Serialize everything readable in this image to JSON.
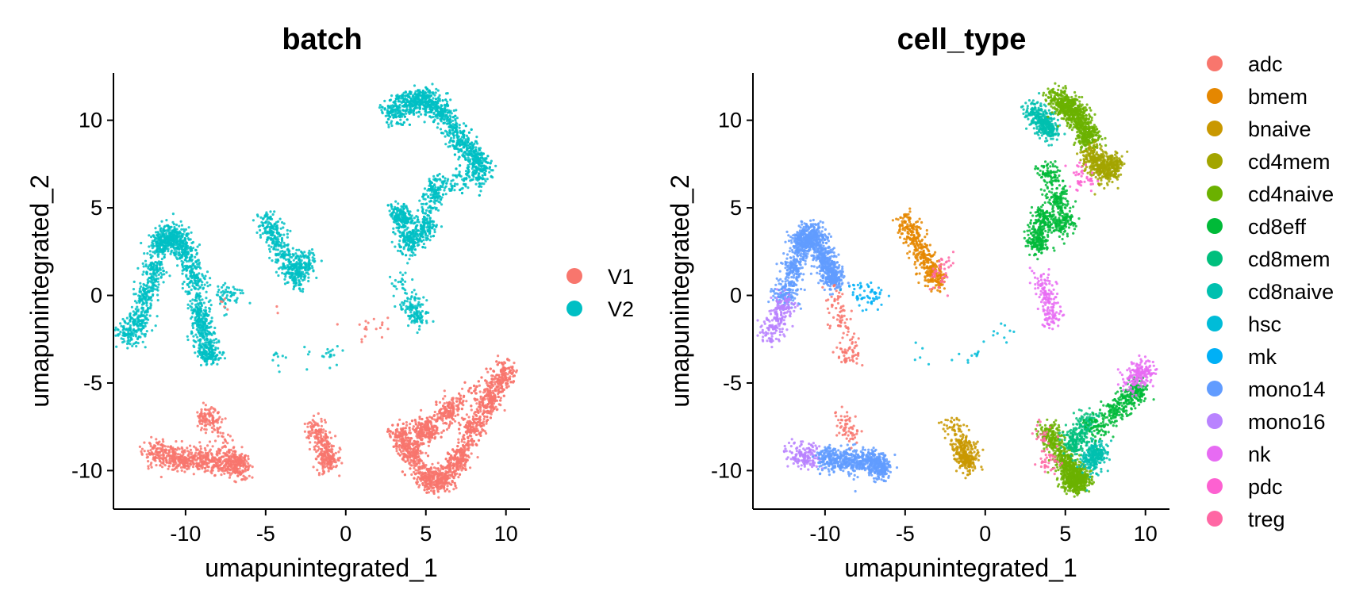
{
  "chart_data": [
    {
      "type": "scatter",
      "title": "batch",
      "xlabel": "umapunintegrated_1",
      "ylabel": "umapunintegrated_2",
      "xlim": [
        -14.5,
        11.5
      ],
      "ylim": [
        -12.2,
        12.7
      ],
      "xticks": [
        -10,
        -5,
        0,
        5,
        10
      ],
      "yticks": [
        -10,
        -5,
        0,
        5,
        10
      ],
      "grid": false,
      "legend_position": "right",
      "legend": [
        {
          "label": "V1",
          "color": "#F8766D"
        },
        {
          "label": "V2",
          "color": "#00BFC4"
        }
      ],
      "clusters": [
        {
          "name": "V2",
          "color": "#00BFC4",
          "x": [
            -13.5,
            -13.0,
            -12.5,
            -12.0,
            -11.5,
            -11.0,
            -10.5,
            -10.0,
            -9.5,
            -9.0,
            -9.0,
            -8.5
          ],
          "y": [
            -2.2,
            -1.5,
            0.0,
            1.5,
            3.0,
            3.5,
            3.2,
            2.5,
            1.0,
            -1.0,
            -2.0,
            -3.3
          ],
          "n": 1500
        },
        {
          "name": "V2",
          "color": "#00BFC4",
          "x": [
            -5.0,
            -4.5,
            -4.0,
            -3.5,
            -3.0,
            -2.5
          ],
          "y": [
            4.2,
            3.5,
            2.5,
            1.5,
            1.0,
            2.0
          ],
          "n": 500
        },
        {
          "name": "V2",
          "color": "#00BFC4",
          "x": [
            3.0,
            4.0,
            5.0,
            6.0,
            7.0,
            8.0,
            8.5,
            5.5,
            5.0,
            4.0,
            3.5
          ],
          "y": [
            10.5,
            11.0,
            11.2,
            10.5,
            9.0,
            8.0,
            7.0,
            6.0,
            4.0,
            3.0,
            4.5
          ],
          "n": 2000
        },
        {
          "name": "V2",
          "color": "#00BFC4",
          "x": [
            3.5,
            4.0,
            4.5
          ],
          "y": [
            0.8,
            -0.5,
            -1.2
          ],
          "n": 150
        },
        {
          "name": "V2",
          "color": "#00BFC4",
          "x": [
            -8.0,
            -7.5,
            -7.0
          ],
          "y": [
            0.2,
            -0.1,
            0.0
          ],
          "n": 60
        },
        {
          "name": "V2",
          "color": "#00BFC4",
          "x": [
            -4.2,
            -0.8
          ],
          "y": [
            -3.6,
            -3.5
          ],
          "n": 30
        },
        {
          "name": "V1",
          "color": "#F8766D",
          "x": [
            -12.0,
            -11.0,
            -10.0,
            -9.0,
            -8.0,
            -7.0,
            -6.5,
            -8.5
          ],
          "y": [
            -9.0,
            -9.2,
            -9.3,
            -9.4,
            -9.5,
            -9.5,
            -9.8,
            -7.0
          ],
          "n": 900
        },
        {
          "name": "V1",
          "color": "#F8766D",
          "x": [
            -2.0,
            -1.5,
            -1.0,
            -1.2
          ],
          "y": [
            -7.5,
            -8.5,
            -9.2,
            -9.5
          ],
          "n": 300
        },
        {
          "name": "V1",
          "color": "#F8766D",
          "x": [
            3.5,
            4.0,
            5.0,
            6.0,
            7.0,
            8.0,
            9.0,
            10.0,
            6.5,
            5.0
          ],
          "y": [
            -8.0,
            -9.0,
            -10.5,
            -10.5,
            -9.5,
            -7.5,
            -6.0,
            -4.3,
            -6.5,
            -7.8
          ],
          "n": 2200
        },
        {
          "name": "V1",
          "color": "#F8766D",
          "x": [
            -7.8,
            2.6,
            1.2
          ],
          "y": [
            -0.1,
            -1.8,
            -2.0
          ],
          "n": 25
        }
      ]
    },
    {
      "type": "scatter",
      "title": "cell_type",
      "xlabel": "umapunintegrated_1",
      "ylabel": "umapunintegrated_2",
      "xlim": [
        -14.5,
        11.5
      ],
      "ylim": [
        -12.2,
        12.7
      ],
      "xticks": [
        -10,
        -5,
        0,
        5,
        10
      ],
      "yticks": [
        -10,
        -5,
        0,
        5,
        10
      ],
      "grid": false,
      "legend_position": "right",
      "legend": [
        {
          "label": "adc",
          "color": "#F8766D"
        },
        {
          "label": "bmem",
          "color": "#E58700"
        },
        {
          "label": "bnaive",
          "color": "#C99800"
        },
        {
          "label": "cd4mem",
          "color": "#A3A500"
        },
        {
          "label": "cd4naive",
          "color": "#6BB100"
        },
        {
          "label": "cd8eff",
          "color": "#00BA38"
        },
        {
          "label": "cd8mem",
          "color": "#00BF7D"
        },
        {
          "label": "cd8naive",
          "color": "#00C0AF"
        },
        {
          "label": "hsc",
          "color": "#00BCD8"
        },
        {
          "label": "mk",
          "color": "#00B0F6"
        },
        {
          "label": "mono14",
          "color": "#619CFF"
        },
        {
          "label": "mono16",
          "color": "#B983FF"
        },
        {
          "label": "nk",
          "color": "#E76BF3"
        },
        {
          "label": "pdc",
          "color": "#FD61D1"
        },
        {
          "label": "treg",
          "color": "#FF67A4"
        }
      ],
      "clusters": [
        {
          "name": "mono14",
          "color": "#619CFF",
          "x": [
            -12.5,
            -12.0,
            -11.5,
            -11.0,
            -10.5,
            -10.0,
            -9.5
          ],
          "y": [
            0.0,
            1.5,
            3.0,
            3.5,
            3.2,
            2.0,
            1.0
          ],
          "n": 1200
        },
        {
          "name": "mono16",
          "color": "#B983FF",
          "x": [
            -13.5,
            -13.0,
            -12.5
          ],
          "y": [
            -2.2,
            -1.5,
            -0.5
          ],
          "n": 200
        },
        {
          "name": "adc",
          "color": "#F8766D",
          "x": [
            -9.5,
            -9.0,
            -8.5
          ],
          "y": [
            0.0,
            -1.5,
            -3.3
          ],
          "n": 120
        },
        {
          "name": "mk",
          "color": "#00B0F6",
          "x": [
            -8.0,
            -7.5,
            -7.0
          ],
          "y": [
            0.2,
            -0.1,
            0.0
          ],
          "n": 60
        },
        {
          "name": "bmem",
          "color": "#E58700",
          "x": [
            -5.0,
            -4.5,
            -4.0,
            -3.5,
            -3.0
          ],
          "y": [
            4.2,
            3.5,
            2.5,
            1.5,
            1.0
          ],
          "n": 400
        },
        {
          "name": "treg",
          "color": "#FF67A4",
          "x": [
            -2.5,
            -3.0
          ],
          "y": [
            1.8,
            1.0
          ],
          "n": 40
        },
        {
          "name": "cd8naive",
          "color": "#00C0AF",
          "x": [
            3.0,
            3.5,
            4.0
          ],
          "y": [
            10.5,
            10.0,
            9.5
          ],
          "n": 350
        },
        {
          "name": "cd4naive",
          "color": "#6BB100",
          "x": [
            4.5,
            5.0,
            5.5,
            6.0,
            6.5
          ],
          "y": [
            11.2,
            10.8,
            10.5,
            10.0,
            9.0
          ],
          "n": 800
        },
        {
          "name": "cd4mem",
          "color": "#A3A500",
          "x": [
            6.5,
            7.0,
            7.5,
            8.0
          ],
          "y": [
            8.0,
            7.5,
            7.0,
            7.5
          ],
          "n": 500
        },
        {
          "name": "cd8eff",
          "color": "#00BA38",
          "x": [
            4.0,
            4.5,
            5.0,
            3.5,
            3.3
          ],
          "y": [
            7.0,
            5.5,
            4.0,
            4.5,
            3.0
          ],
          "n": 600
        },
        {
          "name": "pdc",
          "color": "#FD61D1",
          "x": [
            5.8,
            6.2
          ],
          "y": [
            7.0,
            6.5
          ],
          "n": 40
        },
        {
          "name": "nk",
          "color": "#E76BF3",
          "x": [
            3.5,
            3.8,
            4.0,
            4.2
          ],
          "y": [
            0.8,
            0.0,
            -0.5,
            -1.2
          ],
          "n": 160
        },
        {
          "name": "hsc",
          "color": "#00BCD8",
          "x": [
            -4.2,
            -0.8,
            1.0
          ],
          "y": [
            -3.6,
            -3.5,
            -2.0
          ],
          "n": 25
        },
        {
          "name": "mono16",
          "color": "#B983FF",
          "x": [
            -12.0,
            -11.0
          ],
          "y": [
            -9.0,
            -9.2
          ],
          "n": 150
        },
        {
          "name": "mono14",
          "color": "#619CFF",
          "x": [
            -10.0,
            -9.0,
            -8.0,
            -7.0,
            -6.5
          ],
          "y": [
            -9.3,
            -9.4,
            -9.5,
            -9.5,
            -9.8
          ],
          "n": 700
        },
        {
          "name": "adc",
          "color": "#F8766D",
          "x": [
            -8.7,
            -8.5
          ],
          "y": [
            -7.0,
            -7.8
          ],
          "n": 60
        },
        {
          "name": "bnaive",
          "color": "#C99800",
          "x": [
            -2.0,
            -1.5,
            -1.0,
            -1.2
          ],
          "y": [
            -7.5,
            -8.5,
            -9.2,
            -9.5
          ],
          "n": 300
        },
        {
          "name": "cd4naive",
          "color": "#6BB100",
          "x": [
            4.0,
            5.0,
            6.0,
            5.5
          ],
          "y": [
            -8.0,
            -9.5,
            -10.5,
            -10.5
          ],
          "n": 900
        },
        {
          "name": "cd8naive",
          "color": "#00C0AF",
          "x": [
            6.5,
            7.0
          ],
          "y": [
            -9.5,
            -9.0
          ],
          "n": 250
        },
        {
          "name": "cd8mem",
          "color": "#00BF7D",
          "x": [
            6.0,
            6.5,
            5.5
          ],
          "y": [
            -8.0,
            -7.0,
            -8.5
          ],
          "n": 250
        },
        {
          "name": "cd8eff",
          "color": "#00BA38",
          "x": [
            7.0,
            8.0,
            9.0,
            9.5
          ],
          "y": [
            -7.5,
            -6.5,
            -5.8,
            -5.5
          ],
          "n": 350
        },
        {
          "name": "nk",
          "color": "#E76BF3",
          "x": [
            9.0,
            9.5,
            10.0
          ],
          "y": [
            -5.0,
            -4.5,
            -4.3
          ],
          "n": 180
        },
        {
          "name": "treg",
          "color": "#FF67A4",
          "x": [
            3.5,
            4.0
          ],
          "y": [
            -8.0,
            -9.5
          ],
          "n": 60
        }
      ]
    }
  ]
}
